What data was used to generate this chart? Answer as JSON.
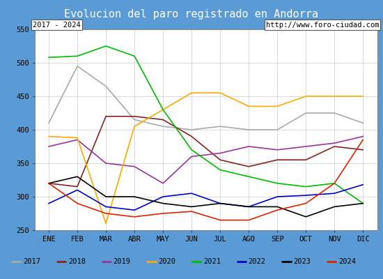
{
  "title": "Evolucion del paro registrado en Andorra",
  "title_bg": "#5b9bd5",
  "subtitle_left": "2017 - 2024",
  "subtitle_right": "http://www.foro-ciudad.com",
  "months": [
    "ENE",
    "FEB",
    "MAR",
    "ABR",
    "MAY",
    "JUN",
    "JUL",
    "AGO",
    "SEP",
    "OCT",
    "NOV",
    "DIC"
  ],
  "ylim": [
    250,
    550
  ],
  "yticks": [
    250,
    300,
    350,
    400,
    450,
    500,
    550
  ],
  "series": {
    "2017": {
      "color": "#aaaaaa",
      "values": [
        410,
        495,
        465,
        415,
        405,
        400,
        405,
        400,
        400,
        425,
        425,
        410
      ]
    },
    "2018": {
      "color": "#882222",
      "values": [
        320,
        315,
        420,
        420,
        415,
        390,
        355,
        345,
        355,
        355,
        375,
        370
      ]
    },
    "2019": {
      "color": "#993399",
      "values": [
        375,
        385,
        350,
        345,
        320,
        360,
        365,
        375,
        370,
        375,
        380,
        390
      ]
    },
    "2020": {
      "color": "#ffaa00",
      "values": [
        390,
        388,
        260,
        405,
        430,
        455,
        455,
        435,
        435,
        450,
        450,
        450
      ]
    },
    "2021": {
      "color": "#00bb00",
      "values": [
        508,
        510,
        525,
        510,
        430,
        370,
        340,
        330,
        320,
        315,
        320,
        290
      ]
    },
    "2022": {
      "color": "#0000cc",
      "values": [
        290,
        310,
        285,
        280,
        300,
        305,
        290,
        285,
        300,
        302,
        305,
        318
      ]
    },
    "2023": {
      "color": "#000000",
      "values": [
        320,
        330,
        300,
        300,
        290,
        285,
        290,
        285,
        285,
        270,
        285,
        290
      ]
    },
    "2024": {
      "color": "#dd2200",
      "values": [
        320,
        290,
        275,
        270,
        275,
        278,
        265,
        265,
        280,
        290,
        320,
        385
      ]
    }
  }
}
